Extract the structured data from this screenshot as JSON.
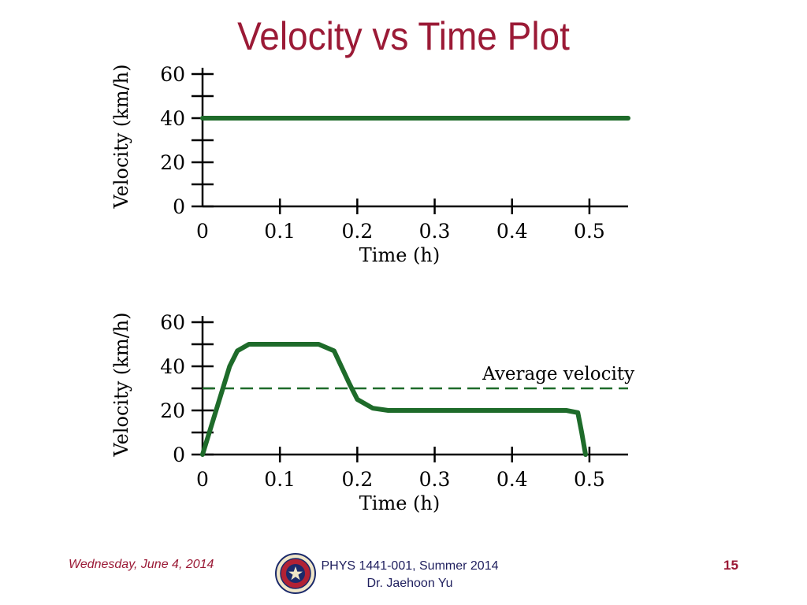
{
  "title": "Velocity vs Time Plot",
  "footer": {
    "date": "Wednesday, June 4, 2014",
    "course": "PHYS 1441-001, Summer 2014",
    "instructor": "Dr. Jaehoon Yu",
    "page": "15"
  },
  "logo": {
    "icon": "university-seal-icon",
    "colors": [
      "#1b2a6b",
      "#b22234",
      "#f0e6c8"
    ]
  },
  "colors": {
    "title": "#9b1a36",
    "curve": "#1e6b2a",
    "footer_text": "#1f1f5e"
  },
  "chart_data": [
    {
      "type": "line",
      "xlabel": "Time (h)",
      "ylabel": "Velocity (km/h)",
      "xlim": [
        0,
        0.55
      ],
      "ylim": [
        0,
        60
      ],
      "x_ticks": [
        0,
        0.1,
        0.2,
        0.3,
        0.4,
        0.5
      ],
      "x_tick_labels": [
        "0",
        "0.1",
        "0.2",
        "0.3",
        "0.4",
        "0.5"
      ],
      "y_ticks": [
        0,
        10,
        20,
        30,
        40,
        50,
        60
      ],
      "y_tick_labels": [
        "0",
        "",
        "20",
        "",
        "40",
        "",
        "60"
      ],
      "grid": false,
      "series": [
        {
          "x": [
            0,
            0.55
          ],
          "y": [
            40,
            40
          ],
          "color": "#1e6b2a",
          "style": "solid"
        }
      ]
    },
    {
      "type": "line",
      "xlabel": "Time (h)",
      "ylabel": "Velocity (km/h)",
      "xlim": [
        0,
        0.55
      ],
      "ylim": [
        0,
        60
      ],
      "x_ticks": [
        0,
        0.1,
        0.2,
        0.3,
        0.4,
        0.5
      ],
      "x_tick_labels": [
        "0",
        "0.1",
        "0.2",
        "0.3",
        "0.4",
        "0.5"
      ],
      "y_ticks": [
        0,
        10,
        20,
        30,
        40,
        50,
        60
      ],
      "y_tick_labels": [
        "0",
        "",
        "20",
        "",
        "40",
        "",
        "60"
      ],
      "grid": false,
      "series": [
        {
          "x": [
            0,
            0.035,
            0.045,
            0.06,
            0.08,
            0.15,
            0.17,
            0.19,
            0.2,
            0.22,
            0.24,
            0.47,
            0.485,
            0.49,
            0.495
          ],
          "y": [
            0,
            40,
            47,
            50,
            50,
            50,
            47,
            32,
            25,
            21,
            20,
            20,
            19,
            10,
            0
          ],
          "color": "#1e6b2a",
          "style": "solid"
        },
        {
          "x": [
            0,
            0.55
          ],
          "y": [
            30,
            30
          ],
          "color": "#1e6b2a",
          "style": "dashed"
        }
      ],
      "annotations": [
        {
          "text": "Average velocity",
          "x": 0.46,
          "y": 34
        }
      ]
    }
  ]
}
